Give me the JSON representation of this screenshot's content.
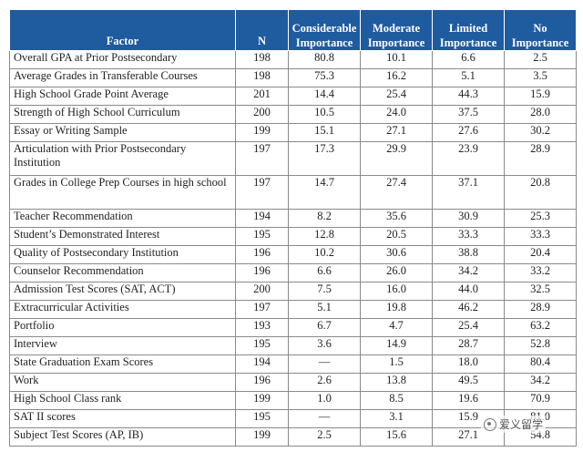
{
  "table": {
    "headers": {
      "factor": "Factor",
      "n": "N",
      "considerable": [
        "Considerable",
        "Importance"
      ],
      "moderate": [
        "Moderate",
        "Importance"
      ],
      "limited": [
        "Limited",
        "Importance"
      ],
      "none": [
        "No",
        "Importance"
      ]
    },
    "rows": [
      {
        "factor": "Overall GPA at Prior Postsecondary",
        "n": "198",
        "considerable": "80.8",
        "moderate": "10.1",
        "limited": "6.6",
        "none": "2.5"
      },
      {
        "factor": "Average Grades in Transferable Courses",
        "n": "198",
        "considerable": "75.3",
        "moderate": "16.2",
        "limited": "5.1",
        "none": "3.5"
      },
      {
        "factor": "High School Grade Point Average",
        "n": "201",
        "considerable": "14.4",
        "moderate": "25.4",
        "limited": "44.3",
        "none": "15.9"
      },
      {
        "factor": "Strength of High School Curriculum",
        "n": "200",
        "considerable": "10.5",
        "moderate": "24.0",
        "limited": "37.5",
        "none": "28.0"
      },
      {
        "factor": "Essay or Writing Sample",
        "n": "199",
        "considerable": "15.1",
        "moderate": "27.1",
        "limited": "27.6",
        "none": "30.2"
      },
      {
        "factor": "Articulation with Prior Postsecondary Institution",
        "n": "197",
        "considerable": "17.3",
        "moderate": "29.9",
        "limited": "23.9",
        "none": "28.9"
      },
      {
        "factor": "Grades in College Prep Courses in high school",
        "n": "197",
        "considerable": "14.7",
        "moderate": "27.4",
        "limited": "37.1",
        "none": "20.8"
      },
      {
        "factor": "Teacher Recommendation",
        "n": "194",
        "considerable": "8.2",
        "moderate": "35.6",
        "limited": "30.9",
        "none": "25.3"
      },
      {
        "factor": "Student’s Demonstrated Interest",
        "n": "195",
        "considerable": "12.8",
        "moderate": "20.5",
        "limited": "33.3",
        "none": "33.3"
      },
      {
        "factor": "Quality of Postsecondary Institution",
        "n": "196",
        "considerable": "10.2",
        "moderate": "30.6",
        "limited": "38.8",
        "none": "20.4"
      },
      {
        "factor": "Counselor Recommendation",
        "n": "196",
        "considerable": "6.6",
        "moderate": "26.0",
        "limited": "34.2",
        "none": "33.2"
      },
      {
        "factor": "Admission Test Scores (SAT, ACT)",
        "n": "200",
        "considerable": "7.5",
        "moderate": "16.0",
        "limited": "44.0",
        "none": "32.5"
      },
      {
        "factor": "Extracurricular Activities",
        "n": "197",
        "considerable": "5.1",
        "moderate": "19.8",
        "limited": "46.2",
        "none": "28.9"
      },
      {
        "factor": "Portfolio",
        "n": "193",
        "considerable": "6.7",
        "moderate": "4.7",
        "limited": "25.4",
        "none": "63.2"
      },
      {
        "factor": "Interview",
        "n": "195",
        "considerable": "3.6",
        "moderate": "14.9",
        "limited": "28.7",
        "none": "52.8"
      },
      {
        "factor": "State Graduation Exam Scores",
        "n": "194",
        "considerable": "—",
        "moderate": "1.5",
        "limited": "18.0",
        "none": "80.4"
      },
      {
        "factor": "Work",
        "n": "196",
        "considerable": "2.6",
        "moderate": "13.8",
        "limited": "49.5",
        "none": "34.2"
      },
      {
        "factor": "High School Class rank",
        "n": "199",
        "considerable": "1.0",
        "moderate": "8.5",
        "limited": "19.6",
        "none": "70.9"
      },
      {
        "factor": "SAT II scores",
        "n": "195",
        "considerable": "—",
        "moderate": "3.1",
        "limited": "15.9",
        "none": "81.0"
      },
      {
        "factor": "Subject Test Scores (AP, IB)",
        "n": "199",
        "considerable": "2.5",
        "moderate": "15.6",
        "limited": "27.1",
        "none": "54.8"
      }
    ]
  },
  "watermark": {
    "text": "爱义留学",
    "icon": "wechat-icon"
  }
}
